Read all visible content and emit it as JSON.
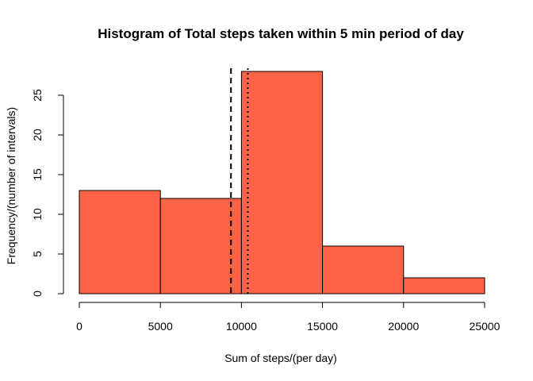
{
  "chart_data": {
    "type": "bar",
    "title": "Histogram of Total steps taken within 5 min period of day",
    "xlabel": "Sum of steps/(per day)",
    "ylabel": "Frequency/(number of intervals)",
    "bins": [
      {
        "from": 0,
        "to": 5000,
        "count": 13
      },
      {
        "from": 5000,
        "to": 10000,
        "count": 12
      },
      {
        "from": 10000,
        "to": 15000,
        "count": 28
      },
      {
        "from": 15000,
        "to": 20000,
        "count": 6
      },
      {
        "from": 20000,
        "to": 25000,
        "count": 2
      }
    ],
    "bar_color": "#FF6347",
    "xlim": [
      0,
      25000
    ],
    "ylim": [
      0,
      28
    ],
    "xticks": [
      0,
      5000,
      10000,
      15000,
      20000,
      25000
    ],
    "yticks": [
      0,
      5,
      10,
      15,
      20,
      25
    ],
    "reference_lines": [
      {
        "style": "dashed",
        "x": 9354
      },
      {
        "style": "dotted",
        "x": 10395
      }
    ],
    "grid": false,
    "legend": "none"
  }
}
